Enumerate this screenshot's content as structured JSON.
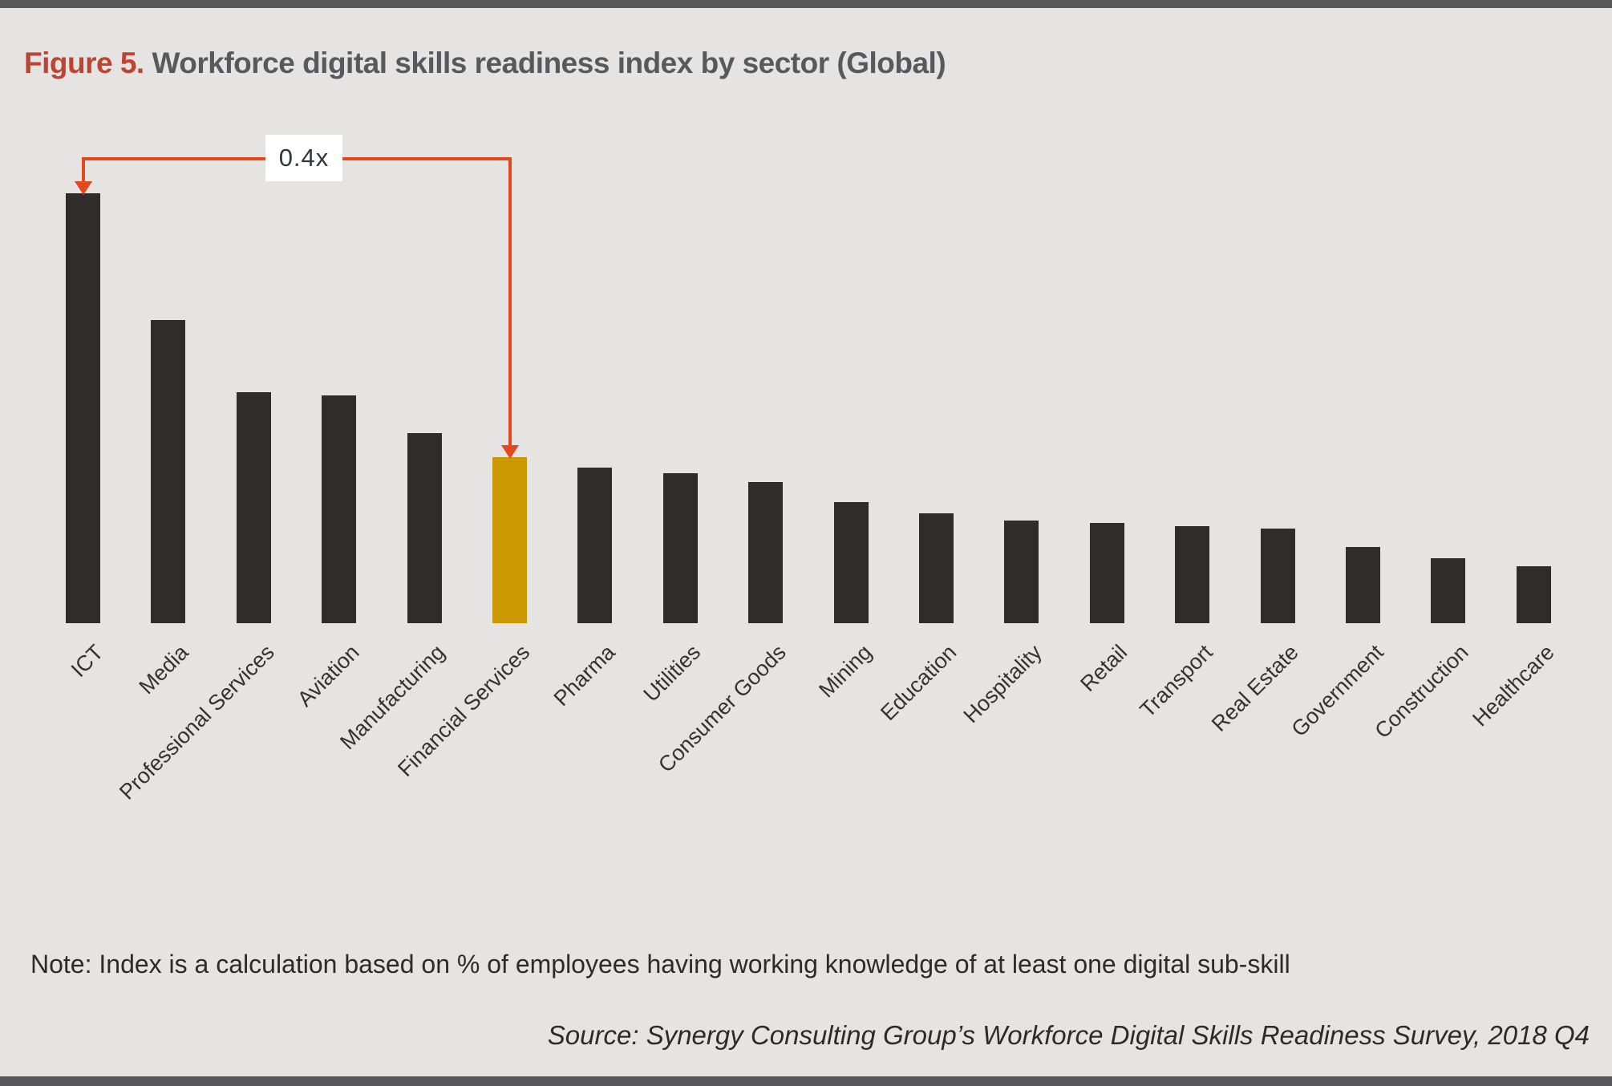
{
  "page": {
    "title_prefix": "Figure 5.",
    "title_rest": " Workforce digital skills readiness index by sector (Global)",
    "note": "Note: Index is a calculation based on % of employees having working knowledge of at least one digital sub-skill",
    "source": "Source: Synergy Consulting Group’s Workforce Digital Skills Readiness Survey, 2018 Q4"
  },
  "annotation": {
    "label": "0.4x",
    "from_category": "ICT",
    "to_category": "Financial Services",
    "arrow_color": "#e2491d"
  },
  "colors": {
    "background": "#e5e4e2",
    "bar": "#2f2c2b",
    "highlight_bar": "#cc9802",
    "title_accent": "#bf4331",
    "title_text": "#565a5f",
    "strip": "#57575a",
    "arrow": "#e2491d"
  },
  "chart_data": {
    "type": "bar",
    "title": "Workforce digital skills readiness index by sector (Global)",
    "xlabel": "",
    "ylabel": "",
    "grid": false,
    "y_axis_visible": false,
    "ylim": [
      0,
      105
    ],
    "categories": [
      "ICT",
      "Media",
      "Professional Services",
      "Aviation",
      "Manufacturing",
      "Financial Services",
      "Pharma",
      "Utilities",
      "Consumer Goods",
      "Mining",
      "Education",
      "Hospitality",
      "Retail",
      "Transport",
      "Real Estate",
      "Government",
      "Construction",
      "Healthcare"
    ],
    "values": [
      100,
      70.5,
      53.7,
      53.0,
      44.2,
      38.6,
      36.2,
      34.9,
      32.8,
      28.2,
      25.6,
      23.9,
      23.3,
      22.6,
      22.0,
      17.7,
      15.1,
      13.2
    ],
    "highlight_category": "Financial Services",
    "annotation": "0.4x (Financial Services vs ICT)"
  }
}
